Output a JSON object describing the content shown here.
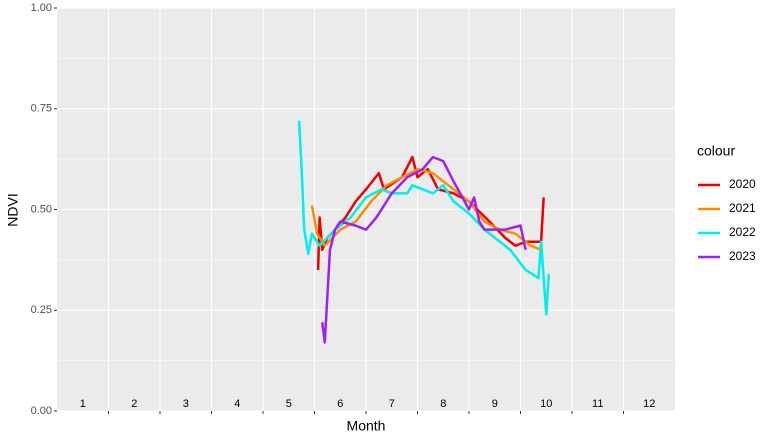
{
  "chart_data": {
    "type": "line",
    "xlabel": "Month",
    "ylabel": "NDVI",
    "legend_title": "colour",
    "xlim": [
      0.5,
      12.5
    ],
    "xticks": [
      1,
      2,
      3,
      4,
      5,
      6,
      7,
      8,
      9,
      10,
      11,
      12
    ],
    "ylim": [
      0,
      1
    ],
    "yticks": [
      {
        "value": 0,
        "label": "0.00"
      },
      {
        "value": 0.25,
        "label": "0.25"
      },
      {
        "value": 0.5,
        "label": "0.50"
      },
      {
        "value": 0.75,
        "label": "0.75"
      },
      {
        "value": 1,
        "label": "1.00"
      }
    ],
    "grid": true,
    "series": [
      {
        "name": "2020",
        "color": "#ee0000",
        "x": [
          5.57,
          5.6,
          5.65,
          5.75,
          5.9,
          6.1,
          6.3,
          6.5,
          6.75,
          6.85,
          7.2,
          7.4,
          7.5,
          7.7,
          7.9,
          8.2,
          8.5,
          8.9,
          9.2,
          9.4,
          9.6,
          9.9,
          9.95
        ],
        "values": [
          0.35,
          0.48,
          0.4,
          0.43,
          0.45,
          0.48,
          0.52,
          0.55,
          0.59,
          0.55,
          0.58,
          0.63,
          0.58,
          0.6,
          0.55,
          0.54,
          0.52,
          0.47,
          0.43,
          0.41,
          0.42,
          0.42,
          0.53
        ]
      },
      {
        "name": "2021",
        "color": "#ff8c00",
        "x": [
          5.45,
          5.55,
          5.7,
          6.0,
          6.3,
          6.6,
          6.9,
          7.2,
          7.5,
          7.8,
          8.1,
          8.5,
          8.8,
          9.1,
          9.4,
          9.7,
          9.9
        ],
        "values": [
          0.51,
          0.44,
          0.41,
          0.45,
          0.47,
          0.52,
          0.56,
          0.58,
          0.6,
          0.59,
          0.56,
          0.52,
          0.47,
          0.45,
          0.44,
          0.41,
          0.4
        ]
      },
      {
        "name": "2022",
        "color": "#00eeee",
        "x": [
          5.2,
          5.25,
          5.3,
          5.38,
          5.45,
          5.6,
          5.9,
          6.2,
          6.5,
          6.8,
          7.0,
          7.3,
          7.4,
          7.6,
          7.8,
          8.0,
          8.2,
          8.5,
          8.8,
          9.0,
          9.3,
          9.6,
          9.85,
          9.9,
          10.0,
          10.05
        ],
        "values": [
          0.72,
          0.6,
          0.45,
          0.39,
          0.44,
          0.41,
          0.45,
          0.48,
          0.53,
          0.55,
          0.54,
          0.54,
          0.56,
          0.55,
          0.54,
          0.56,
          0.52,
          0.49,
          0.45,
          0.43,
          0.4,
          0.35,
          0.33,
          0.42,
          0.24,
          0.34
        ]
      },
      {
        "name": "2023",
        "color": "#a020f0",
        "x": [
          5.65,
          5.7,
          5.8,
          5.9,
          6.0,
          6.3,
          6.5,
          6.7,
          7.0,
          7.3,
          7.6,
          7.8,
          8.0,
          8.2,
          8.5,
          8.6,
          8.7,
          8.8,
          9.2,
          9.5,
          9.6
        ],
        "values": [
          0.22,
          0.17,
          0.4,
          0.45,
          0.47,
          0.46,
          0.45,
          0.48,
          0.54,
          0.58,
          0.6,
          0.63,
          0.62,
          0.57,
          0.5,
          0.53,
          0.47,
          0.45,
          0.45,
          0.46,
          0.4
        ]
      }
    ]
  }
}
